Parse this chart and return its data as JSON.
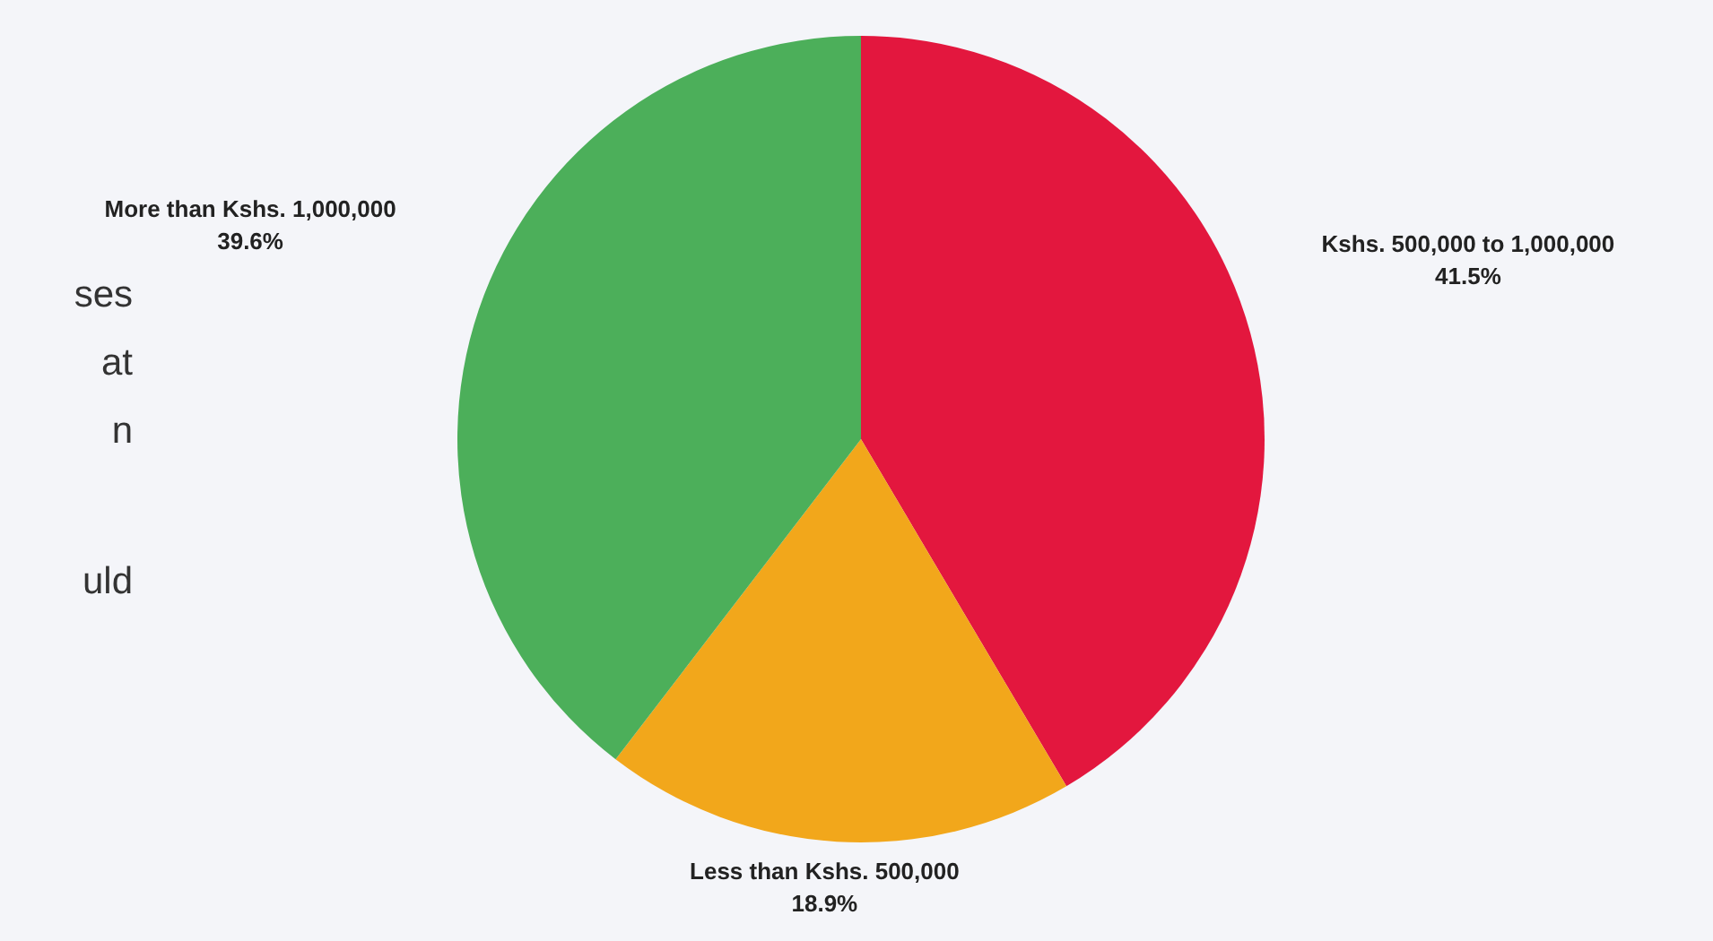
{
  "chart_data": {
    "type": "pie",
    "categories": [
      "Kshs. 500,000 to 1,000,000",
      "Less than Kshs. 500,000",
      "More than Kshs. 1,000,000"
    ],
    "values": [
      41.5,
      18.9,
      39.6
    ],
    "value_labels": [
      "41.5%",
      "18.9%",
      "39.6%"
    ],
    "colors": [
      "#e3173e",
      "#f2a71b",
      "#4caf5a"
    ],
    "annotations": [
      "ses",
      "at",
      "n",
      "uld"
    ],
    "legend": false
  }
}
